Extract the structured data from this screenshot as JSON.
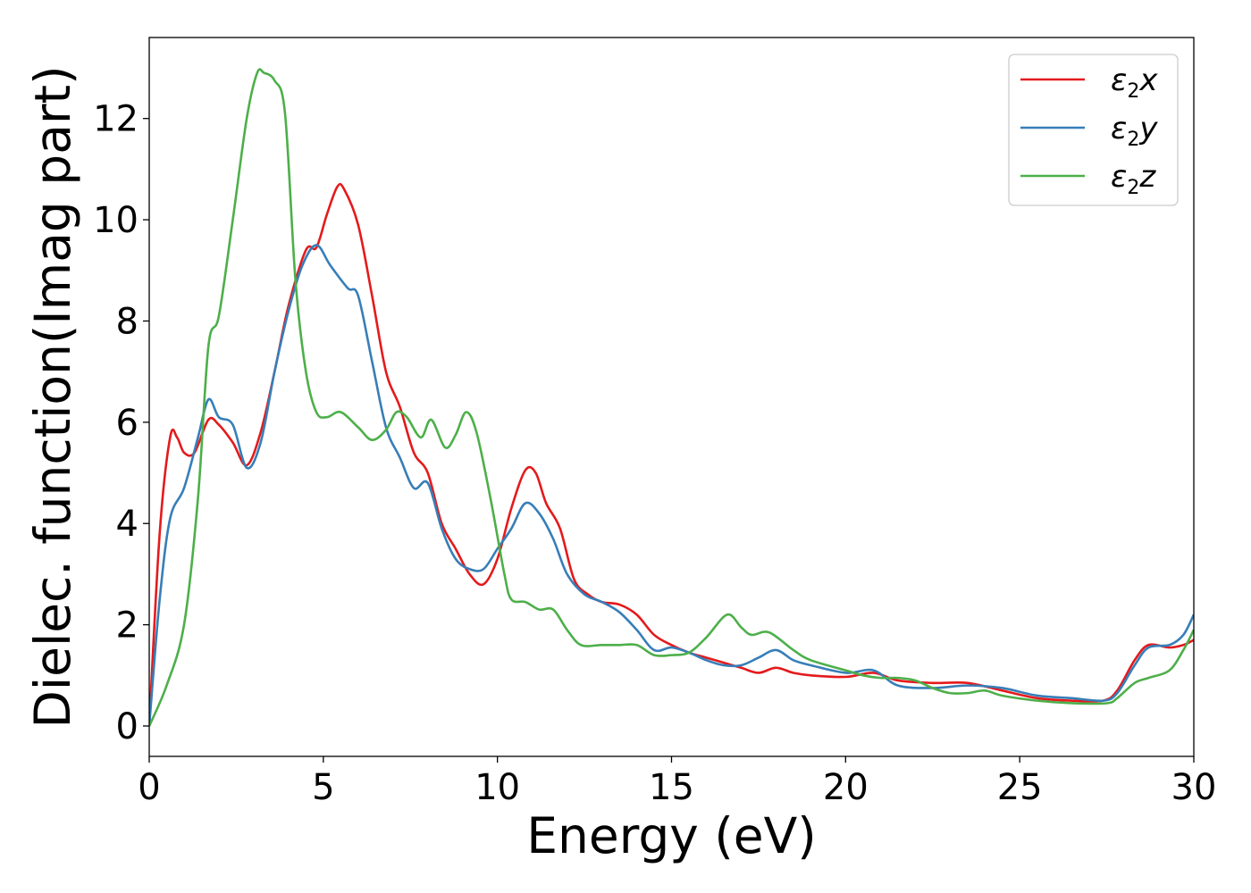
{
  "chart_data": {
    "type": "line",
    "xlabel": "Energy (eV)",
    "ylabel": "Dielec. function(Imag part)",
    "xlim": [
      0,
      30
    ],
    "ylim": [
      -0.6,
      13.6
    ],
    "xticks": [
      0,
      5,
      10,
      15,
      20,
      25,
      30
    ],
    "yticks": [
      0,
      2,
      4,
      6,
      8,
      10,
      12
    ],
    "grid": false,
    "legend_position": "top-right",
    "series": [
      {
        "name": "ε2x",
        "legend": {
          "base": "ε",
          "sub": "2",
          "suffix": "x"
        },
        "color": "#e41a1c",
        "points": [
          [
            0,
            0
          ],
          [
            0.3,
            3.8
          ],
          [
            0.6,
            5.7
          ],
          [
            0.8,
            5.7
          ],
          [
            1.0,
            5.4
          ],
          [
            1.3,
            5.4
          ],
          [
            1.7,
            6.05
          ],
          [
            2.0,
            5.95
          ],
          [
            2.4,
            5.6
          ],
          [
            2.8,
            5.15
          ],
          [
            3.2,
            5.8
          ],
          [
            3.6,
            7.0
          ],
          [
            4.0,
            8.3
          ],
          [
            4.5,
            9.4
          ],
          [
            4.8,
            9.45
          ],
          [
            5.1,
            10.1
          ],
          [
            5.4,
            10.65
          ],
          [
            5.6,
            10.6
          ],
          [
            6.0,
            9.9
          ],
          [
            6.4,
            8.5
          ],
          [
            6.8,
            7.0
          ],
          [
            7.2,
            6.3
          ],
          [
            7.6,
            5.4
          ],
          [
            8.0,
            5.0
          ],
          [
            8.4,
            4.0
          ],
          [
            8.8,
            3.5
          ],
          [
            9.2,
            3.0
          ],
          [
            9.6,
            2.8
          ],
          [
            10.0,
            3.3
          ],
          [
            10.4,
            4.3
          ],
          [
            10.8,
            5.05
          ],
          [
            11.1,
            5.0
          ],
          [
            11.4,
            4.4
          ],
          [
            11.8,
            3.9
          ],
          [
            12.2,
            2.9
          ],
          [
            12.6,
            2.6
          ],
          [
            13.0,
            2.45
          ],
          [
            13.5,
            2.4
          ],
          [
            14.0,
            2.2
          ],
          [
            14.5,
            1.8
          ],
          [
            15.0,
            1.6
          ],
          [
            15.5,
            1.45
          ],
          [
            16.0,
            1.35
          ],
          [
            16.5,
            1.25
          ],
          [
            17.0,
            1.15
          ],
          [
            17.5,
            1.05
          ],
          [
            18.0,
            1.15
          ],
          [
            18.5,
            1.05
          ],
          [
            19.0,
            1.0
          ],
          [
            20.0,
            0.97
          ],
          [
            20.8,
            1.05
          ],
          [
            21.5,
            0.9
          ],
          [
            22.5,
            0.85
          ],
          [
            23.5,
            0.85
          ],
          [
            24.5,
            0.7
          ],
          [
            25.5,
            0.55
          ],
          [
            26.5,
            0.5
          ],
          [
            27.4,
            0.5
          ],
          [
            27.8,
            0.7
          ],
          [
            28.3,
            1.3
          ],
          [
            28.7,
            1.6
          ],
          [
            29.3,
            1.55
          ],
          [
            29.7,
            1.6
          ],
          [
            30.0,
            1.7
          ]
        ]
      },
      {
        "name": "ε2y",
        "legend": {
          "base": "ε",
          "sub": "2",
          "suffix": "y"
        },
        "color": "#377eb8",
        "points": [
          [
            0,
            0
          ],
          [
            0.3,
            2.5
          ],
          [
            0.6,
            4.1
          ],
          [
            1.0,
            4.7
          ],
          [
            1.4,
            5.7
          ],
          [
            1.7,
            6.45
          ],
          [
            2.0,
            6.1
          ],
          [
            2.4,
            5.95
          ],
          [
            2.8,
            5.1
          ],
          [
            3.2,
            5.6
          ],
          [
            3.6,
            7.0
          ],
          [
            4.0,
            8.2
          ],
          [
            4.4,
            9.1
          ],
          [
            4.8,
            9.5
          ],
          [
            5.2,
            9.1
          ],
          [
            5.7,
            8.65
          ],
          [
            6.0,
            8.5
          ],
          [
            6.4,
            7.2
          ],
          [
            6.8,
            5.9
          ],
          [
            7.2,
            5.3
          ],
          [
            7.6,
            4.7
          ],
          [
            8.0,
            4.8
          ],
          [
            8.4,
            3.9
          ],
          [
            8.8,
            3.3
          ],
          [
            9.2,
            3.1
          ],
          [
            9.6,
            3.1
          ],
          [
            10.0,
            3.5
          ],
          [
            10.4,
            3.9
          ],
          [
            10.8,
            4.4
          ],
          [
            11.2,
            4.2
          ],
          [
            11.6,
            3.7
          ],
          [
            12.0,
            3.0
          ],
          [
            12.5,
            2.6
          ],
          [
            13.0,
            2.45
          ],
          [
            13.5,
            2.25
          ],
          [
            14.0,
            1.9
          ],
          [
            14.5,
            1.5
          ],
          [
            15.0,
            1.55
          ],
          [
            15.5,
            1.45
          ],
          [
            16.0,
            1.3
          ],
          [
            16.5,
            1.2
          ],
          [
            17.0,
            1.2
          ],
          [
            17.5,
            1.35
          ],
          [
            18.0,
            1.5
          ],
          [
            18.5,
            1.3
          ],
          [
            19.0,
            1.2
          ],
          [
            20.0,
            1.05
          ],
          [
            20.8,
            1.1
          ],
          [
            21.5,
            0.8
          ],
          [
            22.5,
            0.75
          ],
          [
            23.5,
            0.8
          ],
          [
            24.5,
            0.75
          ],
          [
            25.5,
            0.6
          ],
          [
            26.5,
            0.55
          ],
          [
            27.4,
            0.5
          ],
          [
            27.8,
            0.65
          ],
          [
            28.3,
            1.2
          ],
          [
            28.7,
            1.55
          ],
          [
            29.3,
            1.6
          ],
          [
            29.7,
            1.8
          ],
          [
            30.0,
            2.2
          ]
        ]
      },
      {
        "name": "ε2z",
        "legend": {
          "base": "ε",
          "sub": "2",
          "suffix": "z"
        },
        "color": "#4daf4a",
        "points": [
          [
            0,
            0
          ],
          [
            0.5,
            0.8
          ],
          [
            1.0,
            2.0
          ],
          [
            1.4,
            4.5
          ],
          [
            1.7,
            7.5
          ],
          [
            2.0,
            8.1
          ],
          [
            2.4,
            10.0
          ],
          [
            2.8,
            12.0
          ],
          [
            3.1,
            12.9
          ],
          [
            3.3,
            12.9
          ],
          [
            3.6,
            12.75
          ],
          [
            3.9,
            12.1
          ],
          [
            4.2,
            8.8
          ],
          [
            4.5,
            7.0
          ],
          [
            4.8,
            6.2
          ],
          [
            5.1,
            6.1
          ],
          [
            5.5,
            6.2
          ],
          [
            6.0,
            5.9
          ],
          [
            6.4,
            5.65
          ],
          [
            6.8,
            5.85
          ],
          [
            7.1,
            6.2
          ],
          [
            7.4,
            6.1
          ],
          [
            7.8,
            5.7
          ],
          [
            8.1,
            6.05
          ],
          [
            8.5,
            5.5
          ],
          [
            8.8,
            5.75
          ],
          [
            9.1,
            6.2
          ],
          [
            9.4,
            5.8
          ],
          [
            9.8,
            4.5
          ],
          [
            10.2,
            3.0
          ],
          [
            10.4,
            2.5
          ],
          [
            10.8,
            2.45
          ],
          [
            11.2,
            2.3
          ],
          [
            11.6,
            2.3
          ],
          [
            12.0,
            1.9
          ],
          [
            12.4,
            1.6
          ],
          [
            13.0,
            1.6
          ],
          [
            13.5,
            1.6
          ],
          [
            14.0,
            1.6
          ],
          [
            14.5,
            1.4
          ],
          [
            15.0,
            1.4
          ],
          [
            15.5,
            1.45
          ],
          [
            16.0,
            1.75
          ],
          [
            16.6,
            2.2
          ],
          [
            17.0,
            1.95
          ],
          [
            17.3,
            1.8
          ],
          [
            17.8,
            1.85
          ],
          [
            18.5,
            1.5
          ],
          [
            19.0,
            1.3
          ],
          [
            20.0,
            1.1
          ],
          [
            20.5,
            1.0
          ],
          [
            21.0,
            0.95
          ],
          [
            21.5,
            0.95
          ],
          [
            22.0,
            0.9
          ],
          [
            22.5,
            0.75
          ],
          [
            23.0,
            0.65
          ],
          [
            23.5,
            0.65
          ],
          [
            24.0,
            0.7
          ],
          [
            24.5,
            0.6
          ],
          [
            25.5,
            0.5
          ],
          [
            26.5,
            0.45
          ],
          [
            27.5,
            0.45
          ],
          [
            27.8,
            0.55
          ],
          [
            28.3,
            0.85
          ],
          [
            28.7,
            0.95
          ],
          [
            29.3,
            1.1
          ],
          [
            29.7,
            1.5
          ],
          [
            30.0,
            1.9
          ]
        ]
      }
    ]
  }
}
